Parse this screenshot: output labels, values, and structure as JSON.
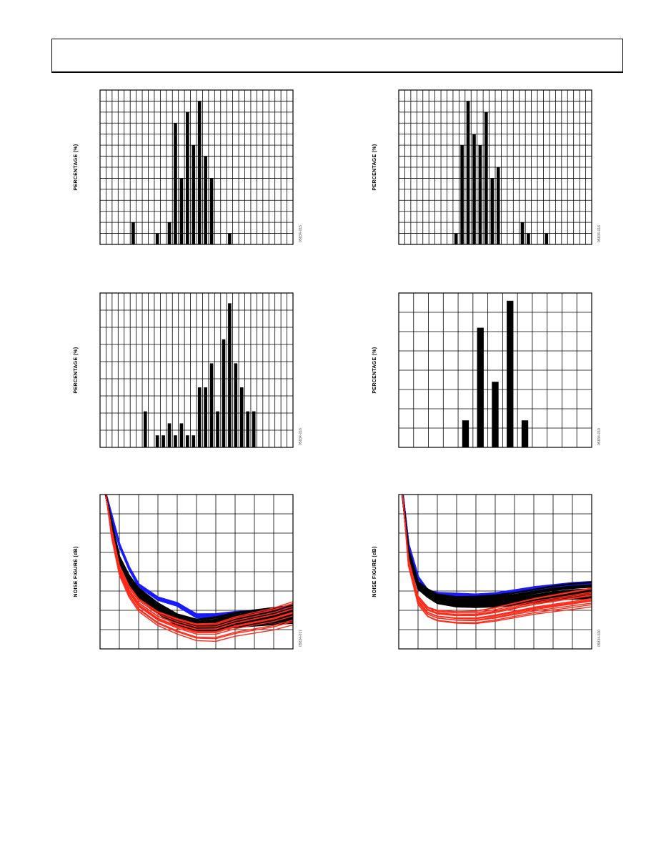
{
  "page": {
    "header_text": ""
  },
  "chart_data": [
    {
      "id": "hist-top-left",
      "type": "bar",
      "ylabel": "PERCENTAGE (%)",
      "figure_id": "05834-015",
      "xlim": [
        0,
        32
      ],
      "ylim": [
        0,
        14
      ],
      "grid": true,
      "bars": [
        {
          "x": 5.5,
          "value": 2.0
        },
        {
          "x": 9.5,
          "value": 1.0
        },
        {
          "x": 11.5,
          "value": 2.0
        },
        {
          "x": 12.5,
          "value": 11.0
        },
        {
          "x": 13.5,
          "value": 6.0
        },
        {
          "x": 14.5,
          "value": 12.0
        },
        {
          "x": 15.5,
          "value": 9.0
        },
        {
          "x": 16.5,
          "value": 13.0
        },
        {
          "x": 17.5,
          "value": 8.0
        },
        {
          "x": 18.5,
          "value": 6.0
        },
        {
          "x": 21.5,
          "value": 1.0
        }
      ]
    },
    {
      "id": "hist-top-right",
      "type": "bar",
      "ylabel": "PERCENTAGE (%)",
      "figure_id": "05834-018",
      "xlim": [
        0,
        32
      ],
      "ylim": [
        0,
        14
      ],
      "grid": true,
      "bars": [
        {
          "x": 9.5,
          "value": 1.0
        },
        {
          "x": 10.5,
          "value": 9.0
        },
        {
          "x": 11.5,
          "value": 13.0
        },
        {
          "x": 12.5,
          "value": 10.0
        },
        {
          "x": 13.5,
          "value": 9.0
        },
        {
          "x": 14.5,
          "value": 12.0
        },
        {
          "x": 15.5,
          "value": 6.0
        },
        {
          "x": 16.5,
          "value": 7.0
        },
        {
          "x": 20.5,
          "value": 2.0
        },
        {
          "x": 21.5,
          "value": 1.0
        },
        {
          "x": 24.5,
          "value": 1.0
        }
      ]
    },
    {
      "id": "hist-mid-left",
      "type": "bar",
      "ylabel": "PERCENTAGE (%)",
      "figure_id": "05834-016",
      "xlim": [
        0,
        32
      ],
      "ylim": [
        0,
        9
      ],
      "grid": true,
      "bars": [
        {
          "x": 7.5,
          "value": 2.1
        },
        {
          "x": 9.5,
          "value": 0.7
        },
        {
          "x": 10.5,
          "value": 0.7
        },
        {
          "x": 11.5,
          "value": 1.4
        },
        {
          "x": 12.5,
          "value": 0.7
        },
        {
          "x": 13.5,
          "value": 1.4
        },
        {
          "x": 14.5,
          "value": 0.7
        },
        {
          "x": 15.5,
          "value": 0.7
        },
        {
          "x": 16.5,
          "value": 3.5
        },
        {
          "x": 17.5,
          "value": 3.5
        },
        {
          "x": 18.5,
          "value": 4.9
        },
        {
          "x": 19.5,
          "value": 2.1
        },
        {
          "x": 20.5,
          "value": 6.3
        },
        {
          "x": 21.5,
          "value": 8.4
        },
        {
          "x": 22.5,
          "value": 4.9
        },
        {
          "x": 23.5,
          "value": 3.5
        },
        {
          "x": 24.5,
          "value": 2.1
        },
        {
          "x": 25.5,
          "value": 2.1
        }
      ]
    },
    {
      "id": "hist-mid-right",
      "type": "bar",
      "ylabel": "PERCENTAGE (%)",
      "figure_id": "05834-019",
      "xlim": [
        0,
        13
      ],
      "ylim": [
        0,
        8
      ],
      "grid": true,
      "bars": [
        {
          "x": 4.5,
          "value": 1.4
        },
        {
          "x": 5.5,
          "value": 6.2
        },
        {
          "x": 6.5,
          "value": 3.4
        },
        {
          "x": 7.5,
          "value": 7.6
        },
        {
          "x": 8.5,
          "value": 1.4
        }
      ]
    },
    {
      "id": "nf-bottom-left",
      "type": "line",
      "ylabel": "NOISE FIGURE (dB)",
      "figure_id": "05834-017",
      "xlim": [
        0,
        10
      ],
      "ylim": [
        0,
        8
      ],
      "grid": true,
      "series_groups": [
        {
          "color": "#000000",
          "count": 22,
          "base": [
            [
              0.3,
              8
            ],
            [
              0.6,
              6.4
            ],
            [
              1,
              4.6
            ],
            [
              1.5,
              3.6
            ],
            [
              2,
              2.9
            ],
            [
              3,
              2.1
            ],
            [
              4,
              1.5
            ],
            [
              5,
              1.2
            ],
            [
              6,
              1.3
            ],
            [
              7,
              1.5
            ],
            [
              8,
              1.6
            ],
            [
              9,
              1.7
            ],
            [
              10,
              1.8
            ]
          ],
          "spread": 0.7
        },
        {
          "color": "#ff2a1a",
          "count": 14,
          "base": [
            [
              0.3,
              8
            ],
            [
              0.6,
              6.0
            ],
            [
              1,
              4.1
            ],
            [
              1.5,
              3.0
            ],
            [
              2,
              2.3
            ],
            [
              3,
              1.6
            ],
            [
              4,
              1.2
            ],
            [
              5,
              0.9
            ],
            [
              6,
              0.9
            ],
            [
              7,
              1.2
            ],
            [
              8,
              1.4
            ],
            [
              9,
              1.6
            ],
            [
              10,
              1.9
            ]
          ],
          "spread": 1.3
        },
        {
          "color": "#1a1aff",
          "count": 5,
          "base": [
            [
              0.3,
              8
            ],
            [
              0.6,
              6.9
            ],
            [
              1,
              5.4
            ],
            [
              1.5,
              4.2
            ],
            [
              2,
              3.3
            ],
            [
              3,
              2.6
            ],
            [
              4,
              2.3
            ],
            [
              5,
              1.7
            ],
            [
              6,
              1.7
            ],
            [
              7,
              1.8
            ],
            [
              8,
              1.85
            ],
            [
              9,
              1.95
            ],
            [
              10,
              2.0
            ]
          ],
          "spread": 0.1
        }
      ]
    },
    {
      "id": "nf-bottom-right",
      "type": "line",
      "ylabel": "NOISE FIGURE (dB)",
      "figure_id": "05834-020",
      "xlim": [
        0,
        10
      ],
      "ylim": [
        0,
        8
      ],
      "grid": true,
      "series_groups": [
        {
          "color": "#000000",
          "count": 22,
          "base": [
            [
              0.2,
              8
            ],
            [
              0.5,
              5.0
            ],
            [
              1,
              3.3
            ],
            [
              1.5,
              2.9
            ],
            [
              2,
              2.6
            ],
            [
              3,
              2.45
            ],
            [
              4,
              2.45
            ],
            [
              5,
              2.5
            ],
            [
              6,
              2.6
            ],
            [
              7,
              2.75
            ],
            [
              8,
              2.9
            ],
            [
              9,
              3.0
            ],
            [
              10,
              3.05
            ]
          ],
          "spread": 0.7
        },
        {
          "color": "#ff2a1a",
          "count": 14,
          "base": [
            [
              0.2,
              8
            ],
            [
              0.5,
              4.5
            ],
            [
              1,
              2.5
            ],
            [
              1.5,
              1.9
            ],
            [
              2,
              1.7
            ],
            [
              3,
              1.6
            ],
            [
              4,
              1.6
            ],
            [
              5,
              1.75
            ],
            [
              6,
              1.95
            ],
            [
              7,
              2.15
            ],
            [
              8,
              2.3
            ],
            [
              9,
              2.45
            ],
            [
              10,
              2.6
            ]
          ],
          "spread": 1.0
        },
        {
          "color": "#1a1aff",
          "count": 5,
          "base": [
            [
              0.2,
              8
            ],
            [
              0.5,
              5.4
            ],
            [
              1,
              3.7
            ],
            [
              1.5,
              3.0
            ],
            [
              2,
              2.85
            ],
            [
              3,
              2.8
            ],
            [
              4,
              2.75
            ],
            [
              5,
              2.8
            ],
            [
              6,
              2.95
            ],
            [
              7,
              3.1
            ],
            [
              8,
              3.2
            ],
            [
              9,
              3.3
            ],
            [
              10,
              3.35
            ]
          ],
          "spread": 0.1
        }
      ]
    }
  ]
}
